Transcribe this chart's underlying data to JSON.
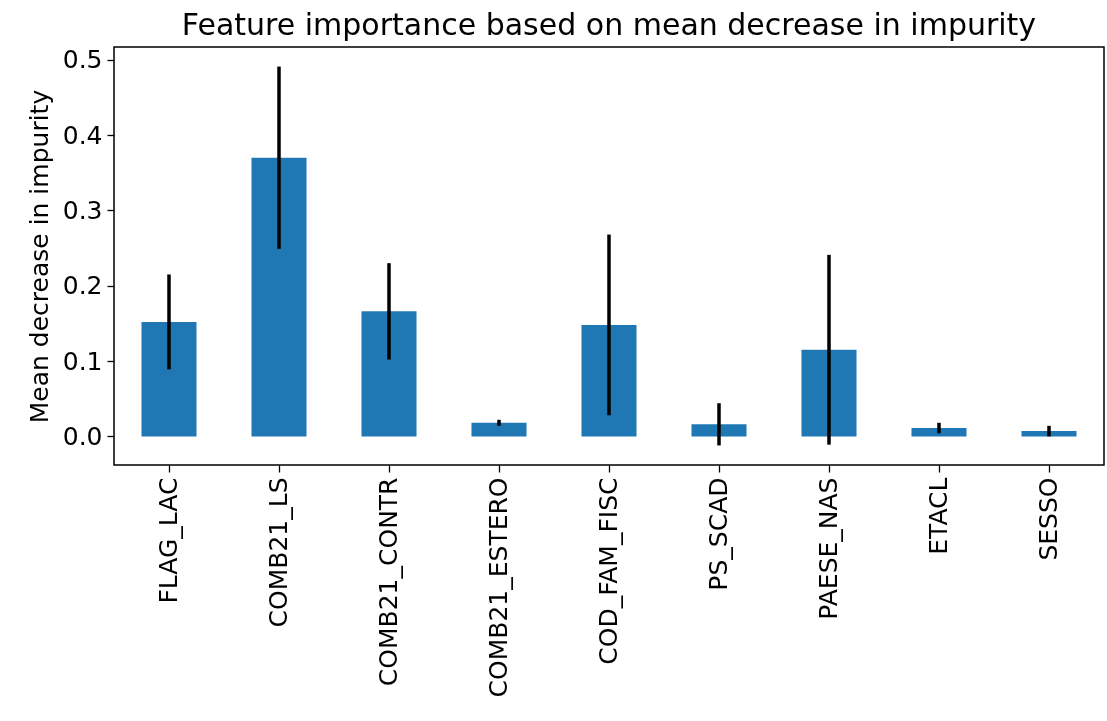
{
  "chart_data": {
    "type": "bar",
    "title": "Feature importance based on mean decrease in impurity",
    "ylabel": "Mean decrease in impurity",
    "categories": [
      "FLAG_LAC",
      "COMB21_LS",
      "COMB21_CONTR",
      "COMB21_ESTERO",
      "COD_FAM_FISC",
      "PS_SCAD",
      "PAESE_NAS",
      "ETACL",
      "SESSO"
    ],
    "values": [
      0.152,
      0.37,
      0.166,
      0.018,
      0.148,
      0.016,
      0.115,
      0.011,
      0.007
    ],
    "errors": [
      0.063,
      0.121,
      0.064,
      0.004,
      0.12,
      0.028,
      0.126,
      0.007,
      0.007
    ],
    "color": "#1f77b4",
    "ylim": [
      -0.038,
      0.517
    ],
    "yticks": [
      {
        "value": 0,
        "label": "0.0"
      },
      0.1,
      0.2,
      0.3,
      0.4,
      0.5
    ]
  }
}
